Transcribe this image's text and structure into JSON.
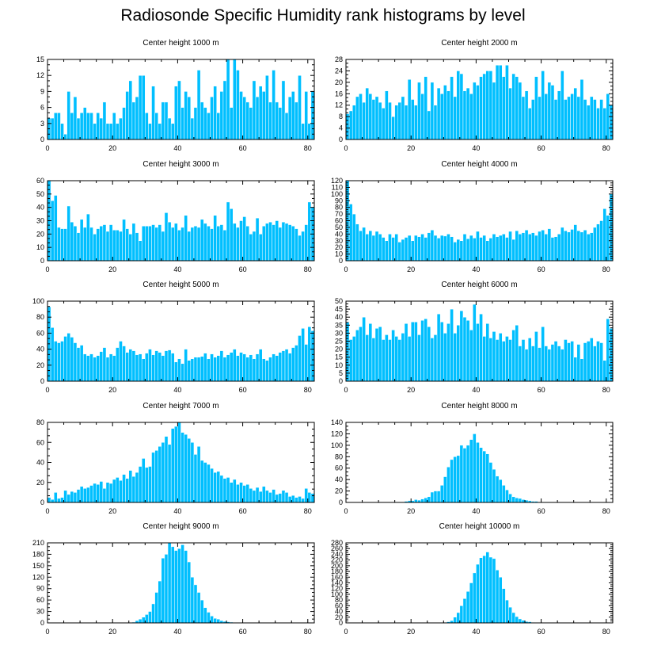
{
  "title": "Radiosonde Specific Humidity rank histograms by level",
  "colors": {
    "bar": "#00BFFF",
    "bar_edge": "#ffffff",
    "axis": "#000000"
  },
  "chart_data": [
    {
      "type": "bar",
      "title": "Center height 1000 m",
      "xlim": [
        0,
        82
      ],
      "ylim": [
        0,
        15
      ],
      "xticks": [
        0,
        20,
        40,
        60,
        80
      ],
      "yticks": [
        0,
        3,
        6,
        9,
        12,
        15
      ],
      "values": [
        4,
        4,
        5,
        5,
        3,
        1,
        9,
        5,
        8,
        4,
        5,
        6,
        5,
        5,
        3,
        5,
        4,
        7,
        3,
        3,
        5,
        3,
        4,
        6,
        9,
        11,
        7,
        8,
        12,
        12,
        5,
        3,
        10,
        5,
        3,
        7,
        7,
        4,
        3,
        10,
        11,
        6,
        9,
        8,
        4,
        6,
        13,
        7,
        6,
        5,
        8,
        10,
        5,
        9,
        11,
        15,
        6,
        15,
        13,
        9,
        8,
        7,
        6,
        11,
        8,
        10,
        9,
        12,
        7,
        13,
        7,
        6,
        11,
        5,
        8,
        9,
        7,
        12,
        3,
        9,
        3,
        9
      ]
    },
    {
      "type": "bar",
      "title": "Center height 2000 m",
      "xlim": [
        0,
        82
      ],
      "ylim": [
        0,
        28
      ],
      "xticks": [
        0,
        20,
        40,
        60,
        80
      ],
      "yticks": [
        0,
        4,
        8,
        12,
        16,
        20,
        24,
        28
      ],
      "values": [
        9,
        10,
        12,
        15,
        16,
        13,
        18,
        16,
        14,
        15,
        13,
        11,
        17,
        13,
        8,
        12,
        13,
        15,
        12,
        21,
        14,
        12,
        20,
        16,
        22,
        10,
        20,
        12,
        18,
        16,
        19,
        17,
        22,
        15,
        24,
        23,
        17,
        18,
        16,
        20,
        19,
        22,
        23,
        24,
        24,
        20,
        26,
        26,
        22,
        26,
        18,
        23,
        22,
        20,
        15,
        17,
        11,
        14,
        22,
        15,
        24,
        16,
        20,
        19,
        14,
        17,
        24,
        14,
        15,
        16,
        18,
        15,
        21,
        14,
        12,
        15,
        14,
        11,
        14,
        11,
        16,
        12
      ]
    },
    {
      "type": "bar",
      "title": "Center height 3000 m",
      "xlim": [
        0,
        82
      ],
      "ylim": [
        0,
        60
      ],
      "xticks": [
        0,
        20,
        40,
        60,
        80
      ],
      "yticks": [
        0,
        10,
        20,
        30,
        40,
        50,
        60
      ],
      "values": [
        60,
        45,
        49,
        25,
        24,
        24,
        41,
        29,
        26,
        21,
        31,
        25,
        35,
        25,
        20,
        24,
        26,
        27,
        22,
        27,
        23,
        23,
        22,
        31,
        24,
        20,
        28,
        21,
        15,
        26,
        26,
        26,
        27,
        25,
        27,
        22,
        36,
        29,
        25,
        28,
        23,
        25,
        34,
        22,
        25,
        26,
        25,
        31,
        28,
        26,
        24,
        34,
        26,
        27,
        23,
        44,
        39,
        28,
        25,
        30,
        33,
        26,
        20,
        22,
        32,
        20,
        26,
        28,
        29,
        27,
        30,
        25,
        29,
        28,
        27,
        26,
        24,
        19,
        22,
        27,
        44,
        40
      ]
    },
    {
      "type": "bar",
      "title": "Center height 4000 m",
      "xlim": [
        0,
        82
      ],
      "ylim": [
        0,
        120
      ],
      "xticks": [
        0,
        20,
        40,
        60,
        80
      ],
      "yticks": [
        0,
        10,
        20,
        30,
        40,
        50,
        60,
        70,
        80,
        90,
        100,
        110,
        120
      ],
      "values": [
        120,
        85,
        70,
        55,
        45,
        50,
        40,
        45,
        38,
        44,
        40,
        35,
        30,
        40,
        35,
        40,
        28,
        32,
        35,
        38,
        30,
        38,
        36,
        40,
        35,
        42,
        46,
        38,
        34,
        38,
        37,
        40,
        36,
        28,
        32,
        30,
        40,
        33,
        38,
        34,
        44,
        35,
        38,
        30,
        34,
        40,
        36,
        38,
        40,
        35,
        44,
        32,
        45,
        40,
        42,
        46,
        40,
        42,
        38,
        44,
        46,
        40,
        48,
        35,
        36,
        40,
        50,
        45,
        43,
        47,
        54,
        45,
        43,
        46,
        40,
        42,
        50,
        55,
        60,
        78,
        68,
        100
      ]
    },
    {
      "type": "bar",
      "title": "Center height 5000 m",
      "xlim": [
        0,
        82
      ],
      "ylim": [
        0,
        100
      ],
      "xticks": [
        0,
        20,
        40,
        60,
        80
      ],
      "yticks": [
        0,
        20,
        40,
        60,
        80,
        100
      ],
      "values": [
        93,
        67,
        50,
        48,
        50,
        56,
        60,
        55,
        48,
        42,
        45,
        34,
        32,
        34,
        30,
        32,
        37,
        42,
        30,
        34,
        32,
        42,
        50,
        44,
        36,
        40,
        38,
        33,
        34,
        28,
        35,
        40,
        33,
        38,
        36,
        32,
        38,
        39,
        35,
        24,
        28,
        22,
        40,
        26,
        28,
        30,
        30,
        31,
        35,
        28,
        34,
        30,
        32,
        38,
        30,
        33,
        36,
        40,
        32,
        36,
        34,
        30,
        33,
        28,
        34,
        40,
        28,
        26,
        30,
        34,
        32,
        36,
        38,
        40,
        35,
        42,
        45,
        57,
        66,
        46,
        68,
        63
      ]
    },
    {
      "type": "bar",
      "title": "Center height 6000 m",
      "xlim": [
        0,
        82
      ],
      "ylim": [
        0,
        50
      ],
      "xticks": [
        0,
        20,
        40,
        60,
        80
      ],
      "yticks": [
        0,
        5,
        10,
        15,
        20,
        25,
        30,
        35,
        40,
        45,
        50
      ],
      "values": [
        37,
        26,
        28,
        32,
        34,
        40,
        29,
        36,
        27,
        33,
        34,
        26,
        29,
        26,
        32,
        28,
        26,
        30,
        36,
        28,
        37,
        37,
        29,
        38,
        39,
        34,
        27,
        29,
        42,
        37,
        30,
        36,
        45,
        30,
        35,
        44,
        40,
        38,
        32,
        48,
        36,
        42,
        28,
        36,
        27,
        31,
        26,
        30,
        25,
        28,
        26,
        32,
        35,
        22,
        26,
        20,
        27,
        22,
        31,
        21,
        34,
        22,
        20,
        23,
        25,
        22,
        20,
        26,
        24,
        25,
        15,
        23,
        14,
        24,
        25,
        27,
        22,
        25,
        24,
        13,
        39,
        33
      ]
    },
    {
      "type": "bar",
      "title": "Center height 7000 m",
      "xlim": [
        0,
        82
      ],
      "ylim": [
        0,
        80
      ],
      "xticks": [
        0,
        20,
        40,
        60,
        80
      ],
      "yticks": [
        0,
        20,
        40,
        60,
        80
      ],
      "values": [
        5,
        3,
        10,
        4,
        5,
        12,
        8,
        11,
        10,
        13,
        16,
        14,
        15,
        17,
        19,
        18,
        21,
        14,
        20,
        19,
        23,
        25,
        22,
        28,
        24,
        32,
        26,
        30,
        36,
        44,
        35,
        36,
        50,
        52,
        56,
        60,
        66,
        58,
        74,
        76,
        80,
        70,
        68,
        64,
        60,
        48,
        56,
        42,
        40,
        38,
        34,
        30,
        31,
        27,
        24,
        25,
        20,
        23,
        18,
        20,
        17,
        18,
        14,
        12,
        15,
        11,
        16,
        12,
        10,
        13,
        8,
        9,
        12,
        10,
        6,
        7,
        5,
        6,
        4,
        14,
        10,
        9
      ]
    },
    {
      "type": "bar",
      "title": "Center height 8000 m",
      "xlim": [
        0,
        82
      ],
      "ylim": [
        0,
        140
      ],
      "xticks": [
        0,
        20,
        40,
        60,
        80
      ],
      "yticks": [
        0,
        20,
        40,
        60,
        80,
        100,
        120,
        140
      ],
      "values": [
        0,
        0,
        0,
        0,
        0,
        0,
        0,
        0,
        0,
        0,
        0,
        0,
        0,
        0,
        0,
        1,
        1,
        1,
        2,
        3,
        3,
        5,
        4,
        6,
        8,
        10,
        18,
        20,
        20,
        30,
        45,
        62,
        75,
        80,
        82,
        100,
        95,
        100,
        110,
        120,
        105,
        96,
        90,
        85,
        70,
        58,
        46,
        40,
        30,
        22,
        15,
        10,
        8,
        7,
        5,
        4,
        3,
        2,
        2,
        1,
        1,
        1,
        1,
        0,
        0,
        0,
        0,
        0,
        0,
        0,
        0,
        0,
        0,
        0,
        0,
        0,
        0,
        0,
        0,
        0,
        0,
        0
      ]
    },
    {
      "type": "bar",
      "title": "Center height 9000 m",
      "xlim": [
        0,
        82
      ],
      "ylim": [
        0,
        210
      ],
      "xticks": [
        0,
        20,
        40,
        60,
        80
      ],
      "yticks": [
        0,
        30,
        60,
        90,
        120,
        150,
        180,
        210
      ],
      "values": [
        0,
        0,
        0,
        0,
        0,
        0,
        0,
        0,
        0,
        0,
        0,
        0,
        0,
        0,
        0,
        0,
        0,
        0,
        0,
        0,
        0,
        0,
        0,
        0,
        0,
        1,
        2,
        6,
        10,
        15,
        22,
        30,
        50,
        80,
        110,
        170,
        180,
        210,
        200,
        190,
        195,
        205,
        190,
        160,
        120,
        100,
        80,
        60,
        40,
        28,
        18,
        12,
        10,
        6,
        4,
        3,
        2,
        1,
        1,
        1,
        0,
        0,
        0,
        0,
        0,
        0,
        1,
        0,
        0,
        0,
        0,
        0,
        0,
        0,
        0,
        0,
        0,
        0,
        0,
        0,
        0,
        0
      ]
    },
    {
      "type": "bar",
      "title": "Center height 10000 m",
      "xlim": [
        0,
        82
      ],
      "ylim": [
        0,
        280
      ],
      "xticks": [
        0,
        20,
        40,
        60,
        80
      ],
      "yticks": [
        0,
        20,
        40,
        60,
        80,
        100,
        120,
        140,
        160,
        180,
        200,
        220,
        240,
        260,
        280
      ],
      "values": [
        0,
        0,
        0,
        0,
        0,
        0,
        0,
        0,
        0,
        0,
        0,
        0,
        0,
        0,
        0,
        0,
        0,
        0,
        0,
        0,
        0,
        0,
        0,
        0,
        0,
        0,
        0,
        0,
        0,
        1,
        2,
        4,
        8,
        20,
        36,
        60,
        85,
        110,
        140,
        175,
        205,
        228,
        235,
        248,
        230,
        225,
        185,
        160,
        120,
        80,
        55,
        36,
        22,
        14,
        9,
        5,
        4,
        2,
        1,
        1,
        1,
        0,
        0,
        0,
        0,
        0,
        0,
        0,
        0,
        0,
        0,
        0,
        0,
        0,
        0,
        0,
        0,
        0,
        0,
        0,
        0,
        0
      ]
    }
  ]
}
